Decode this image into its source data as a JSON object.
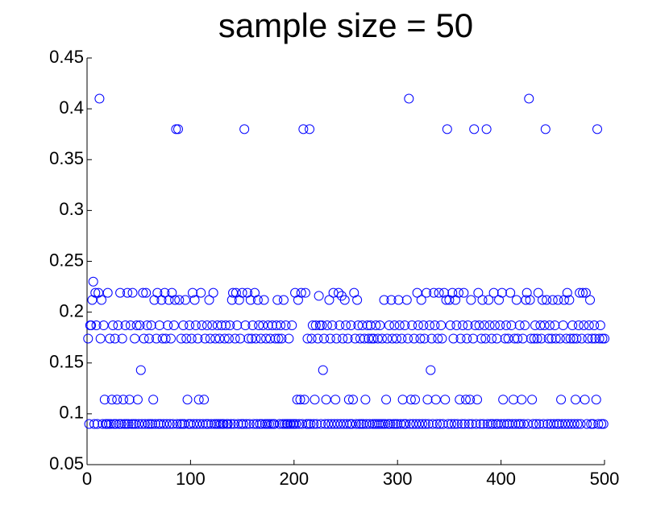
{
  "chart_data": {
    "type": "scatter",
    "title": "sample size = 50",
    "color": "#0000ff",
    "xlim": [
      0,
      500
    ],
    "xticks": [
      0,
      100,
      200,
      300,
      400,
      500
    ],
    "ylim": [
      0.05,
      0.45
    ],
    "yticks": [
      0.05,
      0.1,
      0.15,
      0.2,
      0.25,
      0.3,
      0.35,
      0.4,
      0.45
    ],
    "x": [
      1,
      2,
      3,
      4,
      5,
      6,
      7,
      8,
      9,
      10,
      11,
      12,
      13,
      14,
      15,
      16,
      17,
      18,
      19,
      20,
      21,
      22,
      23,
      24,
      25,
      26,
      27,
      28,
      29,
      30,
      31,
      32,
      33,
      34,
      35,
      36,
      37,
      38,
      39,
      40,
      41,
      42,
      43,
      44,
      45,
      46,
      47,
      48,
      49,
      50,
      51,
      52,
      53,
      54,
      55,
      56,
      57,
      58,
      59,
      60,
      61,
      62,
      63,
      64,
      65,
      66,
      67,
      68,
      69,
      70,
      71,
      72,
      73,
      74,
      75,
      76,
      77,
      78,
      79,
      80,
      81,
      82,
      83,
      84,
      85,
      86,
      87,
      88,
      89,
      90,
      91,
      92,
      93,
      94,
      95,
      96,
      97,
      98,
      99,
      100,
      101,
      102,
      103,
      104,
      105,
      106,
      107,
      108,
      109,
      110,
      111,
      112,
      113,
      114,
      115,
      116,
      117,
      118,
      119,
      120,
      121,
      122,
      123,
      124,
      125,
      126,
      127,
      128,
      129,
      130,
      131,
      132,
      133,
      134,
      135,
      136,
      137,
      138,
      139,
      140,
      141,
      142,
      143,
      144,
      145,
      146,
      147,
      148,
      149,
      150,
      151,
      152,
      153,
      154,
      155,
      156,
      157,
      158,
      159,
      160,
      161,
      162,
      163,
      164,
      165,
      166,
      167,
      168,
      169,
      170,
      171,
      172,
      173,
      174,
      175,
      176,
      177,
      178,
      179,
      180,
      181,
      182,
      183,
      184,
      185,
      186,
      187,
      188,
      189,
      190,
      191,
      192,
      193,
      194,
      195,
      196,
      197,
      198,
      199,
      200,
      201,
      202,
      203,
      204,
      205,
      206,
      207,
      208,
      209,
      210,
      211,
      212,
      213,
      214,
      215,
      216,
      217,
      218,
      219,
      220,
      221,
      222,
      223,
      224,
      225,
      226,
      227,
      228,
      229,
      230,
      231,
      232,
      233,
      234,
      235,
      236,
      237,
      238,
      239,
      240,
      241,
      242,
      243,
      244,
      245,
      246,
      247,
      248,
      249,
      250,
      251,
      252,
      253,
      254,
      255,
      256,
      257,
      258,
      259,
      260,
      261,
      262,
      263,
      264,
      265,
      266,
      267,
      268,
      269,
      270,
      271,
      272,
      273,
      274,
      275,
      276,
      277,
      278,
      279,
      280,
      281,
      282,
      283,
      284,
      285,
      286,
      287,
      288,
      289,
      290,
      291,
      292,
      293,
      294,
      295,
      296,
      297,
      298,
      299,
      300,
      301,
      302,
      303,
      304,
      305,
      306,
      307,
      308,
      309,
      310,
      311,
      312,
      313,
      314,
      315,
      316,
      317,
      318,
      319,
      320,
      321,
      322,
      323,
      324,
      325,
      326,
      327,
      328,
      329,
      330,
      331,
      332,
      333,
      334,
      335,
      336,
      337,
      338,
      339,
      340,
      341,
      342,
      343,
      344,
      345,
      346,
      347,
      348,
      349,
      350,
      351,
      352,
      353,
      354,
      355,
      356,
      357,
      358,
      359,
      360,
      361,
      362,
      363,
      364,
      365,
      366,
      367,
      368,
      369,
      370,
      371,
      372,
      373,
      374,
      375,
      376,
      377,
      378,
      379,
      380,
      381,
      382,
      383,
      384,
      385,
      386,
      387,
      388,
      389,
      390,
      391,
      392,
      393,
      394,
      395,
      396,
      397,
      398,
      399,
      400,
      401,
      402,
      403,
      404,
      405,
      406,
      407,
      408,
      409,
      410,
      411,
      412,
      413,
      414,
      415,
      416,
      417,
      418,
      419,
      420,
      421,
      422,
      423,
      424,
      425,
      426,
      427,
      428,
      429,
      430,
      431,
      432,
      433,
      434,
      435,
      436,
      437,
      438,
      439,
      440,
      441,
      442,
      443,
      444,
      445,
      446,
      447,
      448,
      449,
      450,
      451,
      452,
      453,
      454,
      455,
      456,
      457,
      458,
      459,
      460,
      461,
      462,
      463,
      464,
      465,
      466,
      467,
      468,
      469,
      470,
      471,
      472,
      473,
      474,
      475,
      476,
      477,
      478,
      479,
      480,
      481,
      482,
      483,
      484,
      485,
      486,
      487,
      488,
      489,
      490,
      491,
      492,
      493,
      494,
      495,
      496,
      497,
      498,
      499,
      500
    ],
    "values": [
      0.174,
      0.09,
      0.187,
      0.187,
      0.212,
      0.23,
      0.09,
      0.219,
      0.187,
      0.09,
      0.219,
      0.41,
      0.174,
      0.212,
      0.09,
      0.187,
      0.114,
      0.09,
      0.09,
      0.219,
      0.09,
      0.174,
      0.09,
      0.114,
      0.187,
      0.09,
      0.174,
      0.09,
      0.114,
      0.187,
      0.09,
      0.219,
      0.09,
      0.174,
      0.114,
      0.09,
      0.187,
      0.09,
      0.219,
      0.09,
      0.114,
      0.187,
      0.09,
      0.219,
      0.09,
      0.174,
      0.09,
      0.187,
      0.114,
      0.09,
      0.187,
      0.143,
      0.09,
      0.219,
      0.174,
      0.09,
      0.219,
      0.187,
      0.09,
      0.174,
      0.09,
      0.187,
      0.09,
      0.114,
      0.212,
      0.09,
      0.174,
      0.219,
      0.09,
      0.187,
      0.09,
      0.212,
      0.174,
      0.09,
      0.219,
      0.174,
      0.09,
      0.187,
      0.212,
      0.09,
      0.174,
      0.219,
      0.09,
      0.187,
      0.212,
      0.38,
      0.09,
      0.38,
      0.212,
      0.09,
      0.174,
      0.09,
      0.187,
      0.09,
      0.212,
      0.174,
      0.114,
      0.09,
      0.187,
      0.09,
      0.174,
      0.219,
      0.09,
      0.212,
      0.187,
      0.09,
      0.174,
      0.114,
      0.09,
      0.219,
      0.187,
      0.09,
      0.114,
      0.174,
      0.09,
      0.187,
      0.09,
      0.212,
      0.174,
      0.09,
      0.187,
      0.219,
      0.09,
      0.174,
      0.09,
      0.187,
      0.09,
      0.174,
      0.09,
      0.187,
      0.09,
      0.09,
      0.174,
      0.187,
      0.09,
      0.09,
      0.174,
      0.187,
      0.09,
      0.212,
      0.219,
      0.09,
      0.174,
      0.219,
      0.187,
      0.09,
      0.212,
      0.174,
      0.09,
      0.219,
      0.09,
      0.38,
      0.187,
      0.09,
      0.219,
      0.174,
      0.09,
      0.212,
      0.174,
      0.187,
      0.09,
      0.219,
      0.174,
      0.09,
      0.212,
      0.187,
      0.09,
      0.174,
      0.09,
      0.187,
      0.212,
      0.09,
      0.174,
      0.09,
      0.187,
      0.09,
      0.174,
      0.09,
      0.187,
      0.09,
      0.09,
      0.174,
      0.187,
      0.212,
      0.174,
      0.09,
      0.187,
      0.174,
      0.09,
      0.212,
      0.09,
      0.187,
      0.09,
      0.09,
      0.174,
      0.09,
      0.09,
      0.187,
      0.09,
      0.09,
      0.219,
      0.09,
      0.114,
      0.212,
      0.09,
      0.114,
      0.219,
      0.09,
      0.38,
      0.114,
      0.219,
      0.09,
      0.174,
      0.09,
      0.38,
      0.09,
      0.174,
      0.187,
      0.09,
      0.114,
      0.187,
      0.09,
      0.174,
      0.216,
      0.187,
      0.09,
      0.187,
      0.143,
      0.174,
      0.09,
      0.114,
      0.187,
      0.09,
      0.212,
      0.174,
      0.09,
      0.187,
      0.219,
      0.09,
      0.114,
      0.174,
      0.09,
      0.219,
      0.187,
      0.09,
      0.216,
      0.174,
      0.09,
      0.212,
      0.187,
      0.09,
      0.174,
      0.114,
      0.09,
      0.187,
      0.09,
      0.114,
      0.219,
      0.174,
      0.09,
      0.212,
      0.187,
      0.09,
      0.174,
      0.09,
      0.187,
      0.09,
      0.174,
      0.114,
      0.09,
      0.187,
      0.174,
      0.09,
      0.187,
      0.174,
      0.09,
      0.174,
      0.09,
      0.187,
      0.09,
      0.174,
      0.09,
      0.187,
      0.09,
      0.174,
      0.09,
      0.212,
      0.09,
      0.114,
      0.174,
      0.09,
      0.187,
      0.09,
      0.212,
      0.174,
      0.09,
      0.187,
      0.09,
      0.174,
      0.09,
      0.212,
      0.187,
      0.09,
      0.174,
      0.114,
      0.09,
      0.187,
      0.09,
      0.212,
      0.174,
      0.41,
      0.09,
      0.114,
      0.187,
      0.09,
      0.174,
      0.114,
      0.09,
      0.219,
      0.187,
      0.09,
      0.174,
      0.212,
      0.09,
      0.187,
      0.174,
      0.09,
      0.219,
      0.114,
      0.09,
      0.187,
      0.143,
      0.174,
      0.09,
      0.219,
      0.187,
      0.114,
      0.09,
      0.174,
      0.219,
      0.09,
      0.187,
      0.174,
      0.09,
      0.219,
      0.114,
      0.212,
      0.38,
      0.09,
      0.212,
      0.187,
      0.09,
      0.219,
      0.174,
      0.09,
      0.212,
      0.187,
      0.09,
      0.219,
      0.114,
      0.174,
      0.09,
      0.187,
      0.219,
      0.09,
      0.114,
      0.174,
      0.187,
      0.09,
      0.114,
      0.212,
      0.09,
      0.174,
      0.38,
      0.187,
      0.09,
      0.114,
      0.219,
      0.187,
      0.09,
      0.174,
      0.212,
      0.09,
      0.187,
      0.174,
      0.38,
      0.09,
      0.212,
      0.187,
      0.09,
      0.174,
      0.09,
      0.219,
      0.187,
      0.09,
      0.174,
      0.09,
      0.212,
      0.187,
      0.09,
      0.219,
      0.114,
      0.09,
      0.174,
      0.187,
      0.09,
      0.174,
      0.09,
      0.219,
      0.187,
      0.09,
      0.114,
      0.174,
      0.09,
      0.212,
      0.174,
      0.09,
      0.187,
      0.09,
      0.114,
      0.174,
      0.09,
      0.187,
      0.212,
      0.219,
      0.09,
      0.41,
      0.212,
      0.174,
      0.114,
      0.09,
      0.174,
      0.187,
      0.09,
      0.174,
      0.219,
      0.09,
      0.187,
      0.174,
      0.212,
      0.09,
      0.187,
      0.38,
      0.212,
      0.09,
      0.174,
      0.187,
      0.09,
      0.174,
      0.212,
      0.09,
      0.187,
      0.174,
      0.09,
      0.212,
      0.09,
      0.174,
      0.114,
      0.09,
      0.187,
      0.212,
      0.09,
      0.174,
      0.219,
      0.09,
      0.212,
      0.174,
      0.09,
      0.187,
      0.174,
      0.09,
      0.114,
      0.174,
      0.09,
      0.187,
      0.219,
      0.09,
      0.174,
      0.219,
      0.187,
      0.114,
      0.219,
      0.09,
      0.174,
      0.187,
      0.212,
      0.09,
      0.174,
      0.09,
      0.187,
      0.174,
      0.114,
      0.38,
      0.09,
      0.174,
      0.187,
      0.09,
      0.174,
      0.09,
      0.174
    ]
  }
}
